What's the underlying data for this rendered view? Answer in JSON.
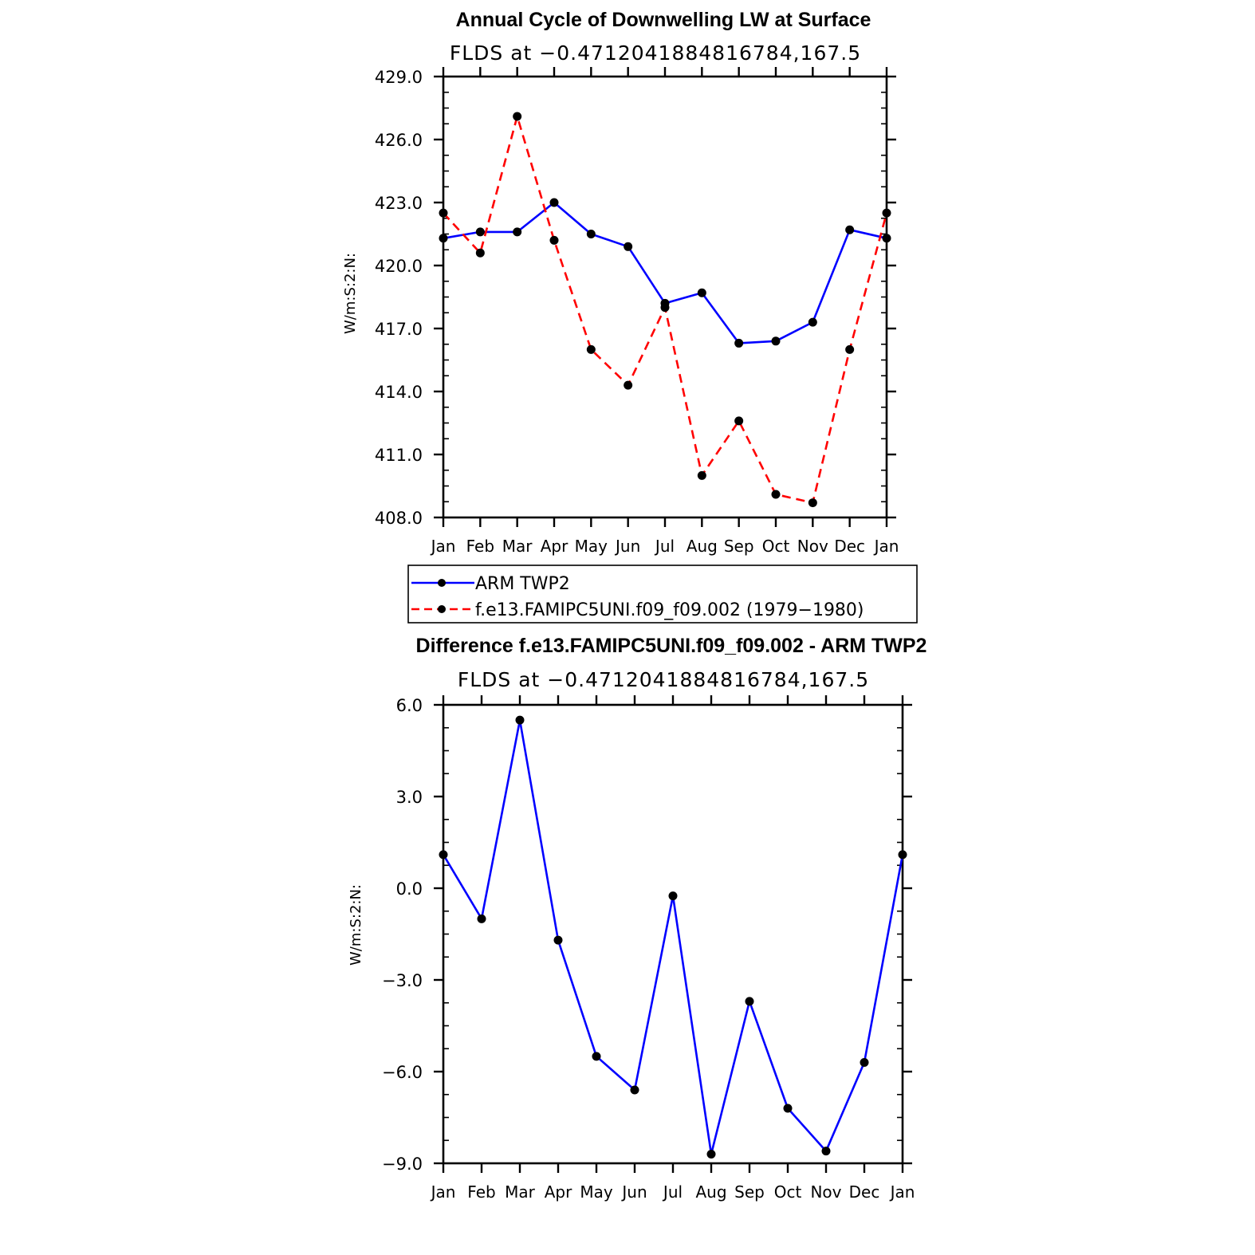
{
  "chart_data": [
    {
      "type": "line",
      "title": "Annual Cycle of Downwelling LW at Surface",
      "subtitle": "FLDS at −0.4712041884816784,167.5",
      "xlabel": "",
      "ylabel": "W/m:S:2:N:",
      "categories": [
        "Jan",
        "Feb",
        "Mar",
        "Apr",
        "May",
        "Jun",
        "Jul",
        "Aug",
        "Sep",
        "Oct",
        "Nov",
        "Dec",
        "Jan"
      ],
      "ylim": [
        408.0,
        429.0
      ],
      "yticks": [
        408.0,
        411.0,
        414.0,
        417.0,
        420.0,
        423.0,
        426.0,
        429.0
      ],
      "ytick_labels": [
        "408.0",
        "411.0",
        "414.0",
        "417.0",
        "420.0",
        "423.0",
        "426.0",
        "429.0"
      ],
      "series": [
        {
          "name": "ARM TWP2",
          "color": "#0000ff",
          "dash": "solid",
          "values": [
            421.3,
            421.6,
            421.6,
            423.0,
            421.5,
            420.9,
            418.2,
            418.7,
            416.3,
            416.4,
            417.3,
            421.7,
            421.3
          ]
        },
        {
          "name": "f.e13.FAMIPC5UNI.f09_f09.002 (1979−1980)",
          "color": "#ff0000",
          "dash": "dashed",
          "values": [
            422.5,
            420.6,
            427.1,
            421.2,
            416.0,
            414.3,
            418.0,
            410.0,
            412.6,
            409.1,
            408.7,
            416.0,
            422.5
          ]
        }
      ],
      "legend": {
        "placement": "below",
        "entries": [
          "ARM TWP2",
          "f.e13.FAMIPC5UNI.f09_f09.002 (1979−1980)"
        ]
      }
    },
    {
      "type": "line",
      "title": "Difference f.e13.FAMIPC5UNI.f09_f09.002 - ARM TWP2",
      "subtitle": "FLDS at −0.4712041884816784,167.5",
      "xlabel": "",
      "ylabel": "W/m:S:2:N:",
      "categories": [
        "Jan",
        "Feb",
        "Mar",
        "Apr",
        "May",
        "Jun",
        "Jul",
        "Aug",
        "Sep",
        "Oct",
        "Nov",
        "Dec",
        "Jan"
      ],
      "ylim": [
        -9.0,
        6.0
      ],
      "yticks": [
        -9.0,
        -6.0,
        -3.0,
        0.0,
        3.0,
        6.0
      ],
      "ytick_labels": [
        "−9.0",
        "−6.0",
        "−3.0",
        "0.0",
        "3.0",
        "6.0"
      ],
      "series": [
        {
          "name": "Difference",
          "color": "#0000ff",
          "dash": "solid",
          "values": [
            1.1,
            -1.0,
            5.5,
            -1.7,
            -5.5,
            -6.6,
            -0.25,
            -8.7,
            -3.7,
            -7.2,
            -8.6,
            -5.7,
            1.1
          ]
        }
      ]
    }
  ]
}
